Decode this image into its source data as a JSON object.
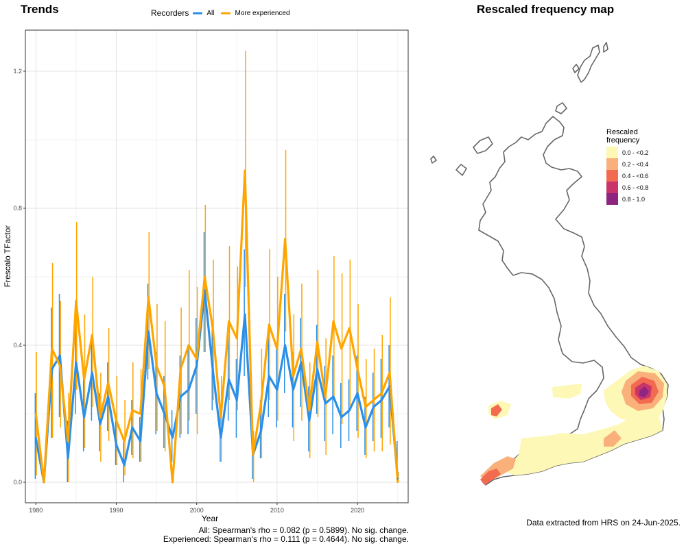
{
  "trends_title": "Trends",
  "map_title": "Rescaled frequency map",
  "legend": {
    "title": "Recorders",
    "items": [
      {
        "label": "All",
        "color": "#2b8fe8"
      },
      {
        "label": "More experienced",
        "color": "#ffa500"
      }
    ]
  },
  "stats": {
    "all": "All: Spearman's rho = 0.082 (p = 0.5899). No sig. change.",
    "experienced": "Experienced: Spearman's rho = 0.111 (p = 0.4644). No sig. change."
  },
  "extract_note": "Data extracted from HRS on 24-Jun-2025.",
  "map_legend": {
    "title_line1": "Rescaled",
    "title_line2": "frequency",
    "bins": [
      {
        "label": "0.0 - <0.2",
        "color": "#fdf8b6"
      },
      {
        "label": "0.2 - <0.4",
        "color": "#f9b07a"
      },
      {
        "label": "0.4 - <0.6",
        "color": "#f26a50"
      },
      {
        "label": "0.6 - <0.8",
        "color": "#c9346b"
      },
      {
        "label": "0.8 - 1.0",
        "color": "#8e2581"
      }
    ]
  },
  "chart_data": {
    "type": "line",
    "xlabel": "Year",
    "ylabel": "Frescalo TFactor",
    "xlim": [
      1978.7,
      2026.3
    ],
    "ylim": [
      -0.06,
      1.32
    ],
    "xticks": [
      1980,
      1990,
      2000,
      2010,
      2020
    ],
    "yticks": [
      0.0,
      0.4,
      0.8,
      1.2
    ],
    "ytick_labels": [
      "0.0",
      "0.4",
      "0.8",
      "1.2"
    ],
    "grid": true,
    "legend_position": "top",
    "x": [
      1980,
      1981,
      1982,
      1983,
      1984,
      1985,
      1986,
      1987,
      1988,
      1989,
      1990,
      1991,
      1992,
      1993,
      1994,
      1995,
      1996,
      1997,
      1998,
      1999,
      2000,
      2001,
      2002,
      2003,
      2004,
      2005,
      2006,
      2007,
      2008,
      2009,
      2010,
      2011,
      2012,
      2013,
      2014,
      2015,
      2016,
      2017,
      2018,
      2019,
      2020,
      2021,
      2022,
      2023,
      2024,
      2025
    ],
    "series": [
      {
        "name": "All",
        "color": "#2b8fe8",
        "values": [
          0.13,
          0.0,
          0.33,
          0.37,
          0.07,
          0.35,
          0.19,
          0.32,
          0.17,
          0.25,
          0.11,
          0.05,
          0.16,
          0.12,
          0.44,
          0.26,
          0.2,
          0.13,
          0.25,
          0.27,
          0.34,
          0.56,
          0.33,
          0.13,
          0.3,
          0.24,
          0.49,
          0.08,
          0.15,
          0.31,
          0.27,
          0.4,
          0.27,
          0.35,
          0.18,
          0.33,
          0.23,
          0.25,
          0.19,
          0.21,
          0.26,
          0.16,
          0.22,
          0.24,
          0.28,
          0.01
        ],
        "lower": [
          0.01,
          0.0,
          0.13,
          0.19,
          0.0,
          0.2,
          0.09,
          0.18,
          0.09,
          0.15,
          0.05,
          0.0,
          0.08,
          0.06,
          0.3,
          0.14,
          0.1,
          0.06,
          0.13,
          0.14,
          0.2,
          0.38,
          0.21,
          0.06,
          0.18,
          0.13,
          0.31,
          0.01,
          0.07,
          0.19,
          0.16,
          0.26,
          0.16,
          0.22,
          0.09,
          0.2,
          0.12,
          0.14,
          0.1,
          0.12,
          0.15,
          0.08,
          0.12,
          0.13,
          0.16,
          0.0
        ],
        "upper": [
          0.26,
          0.0,
          0.51,
          0.55,
          0.18,
          0.49,
          0.31,
          0.43,
          0.26,
          0.35,
          0.18,
          0.12,
          0.24,
          0.19,
          0.58,
          0.38,
          0.31,
          0.21,
          0.37,
          0.39,
          0.48,
          0.73,
          0.46,
          0.21,
          0.43,
          0.36,
          0.68,
          0.16,
          0.24,
          0.43,
          0.39,
          0.55,
          0.38,
          0.48,
          0.28,
          0.46,
          0.34,
          0.37,
          0.29,
          0.3,
          0.37,
          0.25,
          0.32,
          0.36,
          0.4,
          0.12
        ]
      },
      {
        "name": "More experienced",
        "color": "#ffa500",
        "values": [
          0.2,
          0.0,
          0.39,
          0.34,
          0.12,
          0.53,
          0.3,
          0.43,
          0.19,
          0.29,
          0.18,
          0.12,
          0.21,
          0.2,
          0.54,
          0.34,
          0.28,
          0.0,
          0.33,
          0.4,
          0.36,
          0.6,
          0.45,
          0.19,
          0.47,
          0.42,
          0.91,
          0.08,
          0.23,
          0.46,
          0.39,
          0.71,
          0.31,
          0.39,
          0.21,
          0.41,
          0.25,
          0.47,
          0.39,
          0.45,
          0.33,
          0.22,
          0.24,
          0.26,
          0.32,
          0.0
        ],
        "lower": [
          0.02,
          0.0,
          0.13,
          0.16,
          0.0,
          0.27,
          0.1,
          0.22,
          0.06,
          0.12,
          0.05,
          0.02,
          0.07,
          0.06,
          0.33,
          0.15,
          0.09,
          0.0,
          0.14,
          0.18,
          0.14,
          0.38,
          0.24,
          0.06,
          0.24,
          0.21,
          0.57,
          0.0,
          0.07,
          0.24,
          0.18,
          0.44,
          0.12,
          0.18,
          0.07,
          0.19,
          0.08,
          0.24,
          0.17,
          0.22,
          0.13,
          0.07,
          0.09,
          0.09,
          0.11,
          0.0
        ],
        "upper": [
          0.38,
          0.0,
          0.64,
          0.53,
          0.26,
          0.76,
          0.49,
          0.6,
          0.32,
          0.45,
          0.31,
          0.24,
          0.35,
          0.33,
          0.73,
          0.52,
          0.47,
          0.03,
          0.51,
          0.62,
          0.57,
          0.81,
          0.65,
          0.31,
          0.69,
          0.63,
          1.26,
          0.15,
          0.39,
          0.68,
          0.6,
          0.97,
          0.49,
          0.58,
          0.35,
          0.62,
          0.42,
          0.66,
          0.61,
          0.65,
          0.52,
          0.36,
          0.39,
          0.43,
          0.54,
          0.03
        ]
      }
    ]
  }
}
